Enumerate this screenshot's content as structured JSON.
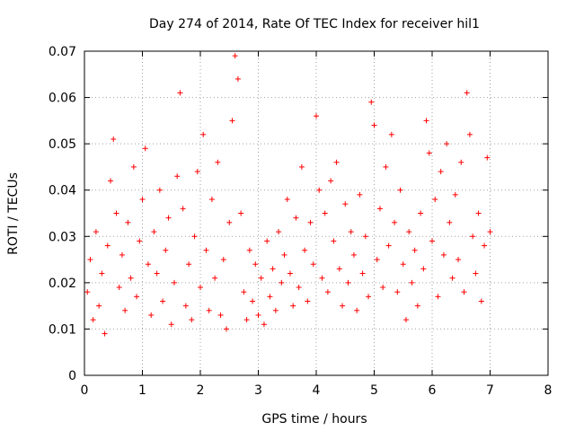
{
  "chart_data": {
    "type": "scatter",
    "title": "Day 274 of 2014, Rate Of TEC Index for receiver hil1",
    "xlabel": "GPS time / hours",
    "ylabel": "ROTI / TECUs",
    "xlim": [
      0,
      8
    ],
    "ylim": [
      0,
      0.07
    ],
    "xticks": [
      0,
      1,
      2,
      3,
      4,
      5,
      6,
      7,
      8
    ],
    "yticks": [
      0,
      0.01,
      0.02,
      0.03,
      0.04,
      0.05,
      0.06,
      0.07
    ],
    "xtick_labels": [
      "0",
      "1",
      "2",
      "3",
      "4",
      "5",
      "6",
      "7",
      "8"
    ],
    "ytick_labels": [
      "0",
      "0.01",
      "0.02",
      "0.03",
      "0.04",
      "0.05",
      "0.06",
      "0.07"
    ],
    "grid": true,
    "marker": "+",
    "color": "#ff0000",
    "series": [
      {
        "name": "ROTI",
        "x": [
          0.05,
          0.1,
          0.15,
          0.2,
          0.25,
          0.3,
          0.35,
          0.4,
          0.45,
          0.5,
          0.55,
          0.6,
          0.65,
          0.7,
          0.75,
          0.8,
          0.85,
          0.9,
          0.95,
          1.0,
          1.05,
          1.1,
          1.15,
          1.2,
          1.25,
          1.3,
          1.35,
          1.4,
          1.45,
          1.5,
          1.55,
          1.6,
          1.65,
          1.7,
          1.75,
          1.8,
          1.85,
          1.9,
          1.95,
          2.0,
          2.05,
          2.1,
          2.15,
          2.2,
          2.25,
          2.3,
          2.35,
          2.4,
          2.45,
          2.5,
          2.55,
          2.6,
          2.65,
          2.7,
          2.75,
          2.8,
          2.85,
          2.9,
          2.95,
          3.0,
          3.05,
          3.1,
          3.15,
          3.2,
          3.25,
          3.3,
          3.35,
          3.4,
          3.45,
          3.5,
          3.55,
          3.6,
          3.65,
          3.7,
          3.75,
          3.8,
          3.85,
          3.9,
          3.95,
          4.0,
          4.05,
          4.1,
          4.15,
          4.2,
          4.25,
          4.3,
          4.35,
          4.4,
          4.45,
          4.5,
          4.55,
          4.6,
          4.65,
          4.7,
          4.75,
          4.8,
          4.85,
          4.9,
          4.95,
          5.0,
          5.05,
          5.1,
          5.15,
          5.2,
          5.25,
          5.3,
          5.35,
          5.4,
          5.45,
          5.5,
          5.55,
          5.6,
          5.65,
          5.7,
          5.75,
          5.8,
          5.85,
          5.9,
          5.95,
          6.0,
          6.05,
          6.1,
          6.15,
          6.2,
          6.25,
          6.3,
          6.35,
          6.4,
          6.45,
          6.5,
          6.55,
          6.6,
          6.65,
          6.7,
          6.75,
          6.8,
          6.85,
          6.9,
          6.95,
          7.0
        ],
        "y": [
          0.018,
          0.025,
          0.012,
          0.031,
          0.015,
          0.022,
          0.009,
          0.028,
          0.042,
          0.051,
          0.035,
          0.019,
          0.026,
          0.014,
          0.033,
          0.021,
          0.045,
          0.017,
          0.029,
          0.038,
          0.049,
          0.024,
          0.013,
          0.031,
          0.022,
          0.04,
          0.016,
          0.027,
          0.034,
          0.011,
          0.02,
          0.043,
          0.061,
          0.036,
          0.015,
          0.024,
          0.012,
          0.03,
          0.044,
          0.019,
          0.052,
          0.027,
          0.014,
          0.038,
          0.021,
          0.046,
          0.013,
          0.025,
          0.01,
          0.033,
          0.055,
          0.069,
          0.064,
          0.035,
          0.018,
          0.012,
          0.027,
          0.016,
          0.024,
          0.013,
          0.021,
          0.011,
          0.029,
          0.017,
          0.023,
          0.014,
          0.031,
          0.02,
          0.026,
          0.038,
          0.022,
          0.015,
          0.034,
          0.019,
          0.045,
          0.027,
          0.016,
          0.033,
          0.024,
          0.056,
          0.04,
          0.021,
          0.035,
          0.018,
          0.042,
          0.029,
          0.046,
          0.023,
          0.015,
          0.037,
          0.02,
          0.031,
          0.026,
          0.014,
          0.039,
          0.022,
          0.03,
          0.017,
          0.059,
          0.054,
          0.025,
          0.036,
          0.019,
          0.045,
          0.028,
          0.052,
          0.033,
          0.018,
          0.04,
          0.024,
          0.012,
          0.031,
          0.02,
          0.027,
          0.015,
          0.035,
          0.023,
          0.055,
          0.048,
          0.029,
          0.038,
          0.017,
          0.044,
          0.026,
          0.05,
          0.033,
          0.021,
          0.039,
          0.025,
          0.046,
          0.018,
          0.061,
          0.052,
          0.03,
          0.022,
          0.035,
          0.016,
          0.028,
          0.047,
          0.031
        ]
      }
    ]
  }
}
